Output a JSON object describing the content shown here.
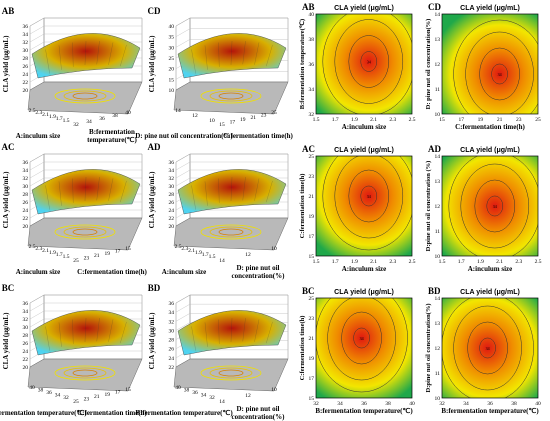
{
  "figure": {
    "panel_labels": [
      "AB",
      "CD",
      "AC",
      "AD",
      "BC",
      "BD"
    ]
  },
  "chart_data": [
    {
      "type": "surface3d",
      "label": "AB",
      "zlabel": "CLA yield (μg/mL)",
      "zticks": [
        "20",
        "22",
        "24",
        "26",
        "28",
        "30",
        "32",
        "34",
        "36"
      ],
      "xlabel": "A:inculum size",
      "xticks": [
        "2.5",
        "2.3",
        "2.1",
        "1.9",
        "1.7",
        "1.5"
      ],
      "ylabel": "B:fermentation temperature(℃)",
      "yticks": [
        "32",
        "34",
        "36",
        "38",
        "40"
      ],
      "zrange": [
        20,
        36
      ]
    },
    {
      "type": "surface3d",
      "label": "CD",
      "zlabel": "CLA yield (μg/mL)",
      "zticks": [
        "10",
        "15",
        "20",
        "25",
        "30",
        "35",
        "40"
      ],
      "xlabel": "D: pine nut oil concentration(%)",
      "xticks": [
        "14",
        "12",
        "10"
      ],
      "ylabel": "C:fermentation time(h)",
      "yticks": [
        "15",
        "17",
        "19",
        "21",
        "23",
        "25"
      ],
      "zrange": [
        10,
        40
      ]
    },
    {
      "type": "contour",
      "label": "AB",
      "title": "CLA yield (μg/mL)",
      "xlabel": "A:inculum size",
      "xticks": [
        "1.5",
        "1.7",
        "1.9",
        "2.1",
        "2.3",
        "2.5"
      ],
      "ylabel": "B:fermentation temperature(℃)",
      "yticks": [
        "32",
        "34",
        "36",
        "38",
        "40"
      ],
      "xlim": [
        1.5,
        2.5
      ],
      "ylim": [
        32,
        40
      ],
      "center": [
        2.05,
        36.2
      ],
      "center_value": "34"
    },
    {
      "type": "contour",
      "label": "CD",
      "title": "CLA yield (μg/mL)",
      "xlabel": "C:fermentation time(h)",
      "xticks": [
        "15",
        "17",
        "19",
        "21",
        "23",
        "25"
      ],
      "ylabel": "D: pine nut oil concentration(%)",
      "yticks": [
        "10",
        "11",
        "12",
        "13",
        "14"
      ],
      "xlim": [
        15,
        25
      ],
      "ylim": [
        10,
        14
      ],
      "center": [
        21,
        11.6
      ],
      "center_value": "34"
    },
    {
      "type": "surface3d",
      "label": "AC",
      "zlabel": "CLA yield (μg/mL)",
      "zticks": [
        "20",
        "22",
        "24",
        "26",
        "28",
        "30",
        "32",
        "34",
        "36"
      ],
      "xlabel": "A:inculum size",
      "xticks": [
        "2.5",
        "2.3",
        "2.1",
        "1.9",
        "1.7",
        "1.5"
      ],
      "ylabel": "C:fermentation time(h)",
      "yticks": [
        "25",
        "23",
        "21",
        "19",
        "17",
        "15"
      ],
      "zrange": [
        20,
        36
      ]
    },
    {
      "type": "surface3d",
      "label": "AD",
      "zlabel": "CLA yield (μg/mL)",
      "zticks": [
        "20",
        "22",
        "24",
        "26",
        "28",
        "30",
        "32",
        "34",
        "36"
      ],
      "xlabel": "A:inculum size",
      "xticks": [
        "2.5",
        "2.3",
        "2.1",
        "1.9",
        "1.7",
        "1.5"
      ],
      "ylabel": "D: pine nut oil concentration(%)",
      "yticks": [
        "14",
        "12",
        "10"
      ],
      "zrange": [
        20,
        36
      ]
    },
    {
      "type": "contour",
      "label": "AC",
      "title": "CLA yield (μg/mL)",
      "xlabel": "A:inculum size",
      "xticks": [
        "1.5",
        "1.7",
        "1.9",
        "2.1",
        "2.3",
        "2.5"
      ],
      "ylabel": "C:fermentation time(h)",
      "yticks": [
        "15",
        "17",
        "19",
        "21",
        "23",
        "25"
      ],
      "xlim": [
        1.5,
        2.5
      ],
      "ylim": [
        15,
        25
      ],
      "center": [
        2.05,
        21
      ],
      "center_value": "34"
    },
    {
      "type": "contour",
      "label": "AD",
      "title": "CLA yield (μg/mL)",
      "xlabel": "A:inculum size",
      "xticks": [
        "1.5",
        "1.7",
        "1.9",
        "2.1",
        "2.3",
        "2.5"
      ],
      "ylabel": "D:pine nut oil concentration (%)",
      "yticks": [
        "10",
        "11",
        "12",
        "13",
        "14"
      ],
      "xlim": [
        1.5,
        2.5
      ],
      "ylim": [
        10,
        14
      ],
      "center": [
        2.05,
        12
      ],
      "center_value": "34"
    },
    {
      "type": "surface3d",
      "label": "BC",
      "zlabel": "CLA yield (μg/mL)",
      "zticks": [
        "20",
        "22",
        "24",
        "26",
        "28",
        "30",
        "32",
        "34",
        "36"
      ],
      "xlabel": "B:fermentation temperature(℃)",
      "xticks": [
        "40",
        "38",
        "36",
        "34",
        "32"
      ],
      "ylabel": "C:fermentation time(h)",
      "yticks": [
        "25",
        "23",
        "21",
        "19",
        "17",
        "15"
      ],
      "zrange": [
        20,
        36
      ]
    },
    {
      "type": "surface3d",
      "label": "BD",
      "zlabel": "CLA yield (μg/mL)",
      "zticks": [
        "22",
        "24",
        "26",
        "28",
        "30",
        "32",
        "34",
        "36"
      ],
      "xlabel": "B:fermentation temperature(℃)",
      "xticks": [
        "40",
        "38",
        "36",
        "34",
        "32"
      ],
      "ylabel": "D: pine nut oil concentration(%)",
      "yticks": [
        "14",
        "12",
        "10"
      ],
      "zrange": [
        22,
        36
      ]
    },
    {
      "type": "contour",
      "label": "BC",
      "title": "CLA yield (μg/mL)",
      "xlabel": "B:fermentation temperature(℃)",
      "xticks": [
        "32",
        "34",
        "36",
        "38",
        "40"
      ],
      "ylabel": "C:fermentation time(h)",
      "yticks": [
        "15",
        "17",
        "19",
        "21",
        "23",
        "25"
      ],
      "xlim": [
        32,
        40
      ],
      "ylim": [
        15,
        25
      ],
      "center": [
        35.8,
        21
      ],
      "center_value": "34"
    },
    {
      "type": "contour",
      "label": "BD",
      "title": "CLA yield (μg/mL)",
      "xlabel": "B:fermentation temperature(℃)",
      "xticks": [
        "32",
        "34",
        "36",
        "38",
        "40"
      ],
      "ylabel": "D:pine nut oil concentration(%)",
      "yticks": [
        "10",
        "11",
        "12",
        "13",
        "14"
      ],
      "xlim": [
        32,
        40
      ],
      "ylim": [
        10,
        14
      ],
      "center": [
        35.8,
        12
      ],
      "center_value": "34"
    }
  ],
  "colors": {
    "surface_low": "#4fd3f0",
    "surface_mid": "#d8b000",
    "surface_high": "#b4140a",
    "contour_outer": "#1fa84a",
    "contour_mid": "#f2e600",
    "contour_inner": "#f08c00",
    "contour_core": "#e01a10",
    "ring_yellow": "#e8d800",
    "floor": "#b9b9b9"
  }
}
